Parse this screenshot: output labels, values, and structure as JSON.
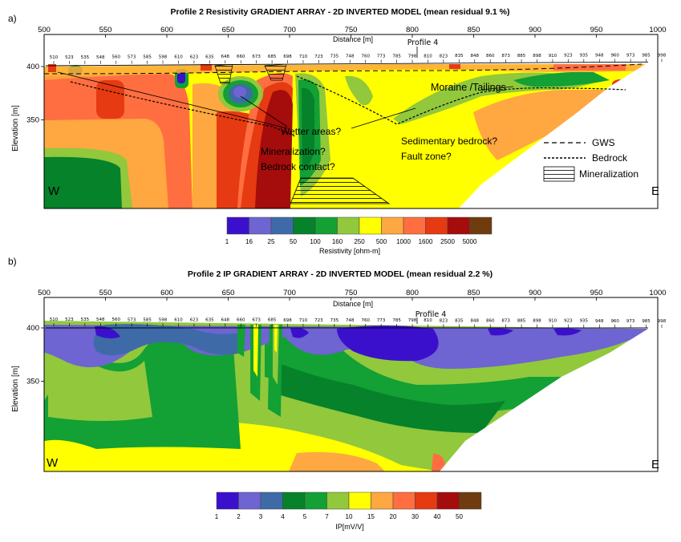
{
  "panels": [
    {
      "letter": "a)",
      "title": "Profile 2 Resistivity GRADIENT ARRAY - 2D INVERTED MODEL (mean residual 9.1 %)",
      "xlabel": "Distance [m]",
      "ylabel": "Elevation [m]",
      "profile_marker": "Profile 4",
      "west": "W",
      "east": "E",
      "scale_label": "Resistivity [ohm-m]"
    },
    {
      "letter": "b)",
      "title": "Profile 2 IP GRADIENT ARRAY - 2D INVERTED MODEL (mean residual 2.2 %)",
      "xlabel": "Distance [m]",
      "ylabel": "Elevation [m]",
      "profile_marker": "Profile 4",
      "west": "W",
      "east": "E",
      "scale_label": "IP[mV/V]"
    }
  ],
  "annotations": {
    "wetter": "Wetter areas?",
    "mineralization": "Mineralization?",
    "bedrock_contact": "Bedrock contact?",
    "moraine": "Moraine /Tailings",
    "sedimentary": "Sedimentary bedrock?",
    "fault": "Fault zone?"
  },
  "legend": {
    "gws": "GWS",
    "bedrock": "Bedrock",
    "mineralization": "Mineralization"
  },
  "chart_data": [
    {
      "type": "heatmap",
      "title": "Profile 2 Resistivity GRADIENT ARRAY - 2D INVERTED MODEL (mean residual 9.1 %)",
      "xlabel": "Distance [m]",
      "ylabel": "Elevation [m]",
      "xlim": [
        500,
        1000
      ],
      "x_ticks": [
        500,
        550,
        600,
        650,
        700,
        750,
        800,
        850,
        900,
        950,
        1000
      ],
      "y_ticks": [
        350,
        400
      ],
      "electrodes": [
        "510",
        "523",
        "535",
        "548",
        "560",
        "573",
        "585",
        "598",
        "610",
        "623",
        "635",
        "648",
        "660",
        "673",
        "685",
        "698",
        "710",
        "723",
        "735",
        "748",
        "760",
        "773",
        "785",
        "798",
        "810",
        "823",
        "835",
        "848",
        "860",
        "873",
        "885",
        "898",
        "910",
        "923",
        "935",
        "948",
        "960",
        "973",
        "985",
        "998"
      ],
      "scale": {
        "label": "Resistivity [ohm-m]",
        "values": [
          "1",
          "16",
          "25",
          "50",
          "100",
          "160",
          "250",
          "500",
          "1000",
          "1600",
          "2500",
          "5000"
        ],
        "colors": [
          "#3b10cc",
          "#6e64d2",
          "#3e6ba8",
          "#05822a",
          "#13a035",
          "#91c83c",
          "#ffff00",
          "#ffa740",
          "#ff6e40",
          "#e63a12",
          "#a50c0c",
          "#6f3c0f"
        ]
      }
    },
    {
      "type": "heatmap",
      "title": "Profile 2 IP GRADIENT ARRAY - 2D INVERTED MODEL (mean residual 2.2 %)",
      "xlabel": "Distance [m]",
      "ylabel": "Elevation [m]",
      "xlim": [
        500,
        1000
      ],
      "x_ticks": [
        500,
        550,
        600,
        650,
        700,
        750,
        800,
        850,
        900,
        950,
        1000
      ],
      "y_ticks": [
        350,
        400
      ],
      "electrodes": [
        "510",
        "523",
        "535",
        "548",
        "560",
        "573",
        "585",
        "598",
        "610",
        "623",
        "635",
        "648",
        "660",
        "673",
        "685",
        "698",
        "710",
        "723",
        "735",
        "748",
        "760",
        "773",
        "785",
        "798",
        "810",
        "823",
        "835",
        "848",
        "860",
        "873",
        "885",
        "898",
        "910",
        "923",
        "935",
        "948",
        "960",
        "973",
        "985",
        "998"
      ],
      "scale": {
        "label": "IP[mV/V]",
        "values": [
          "1",
          "2",
          "3",
          "4",
          "5",
          "7",
          "10",
          "15",
          "20",
          "30",
          "40",
          "50"
        ],
        "colors": [
          "#3b10cc",
          "#6e64d2",
          "#3e6ba8",
          "#05822a",
          "#13a035",
          "#91c83c",
          "#ffff00",
          "#ffa740",
          "#ff6e40",
          "#e63a12",
          "#a50c0c",
          "#6f3c0f"
        ]
      }
    }
  ]
}
